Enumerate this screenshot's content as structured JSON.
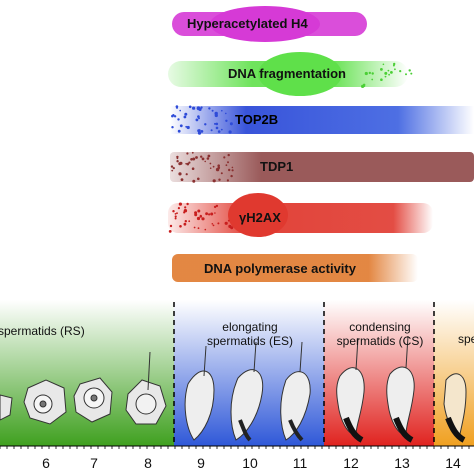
{
  "markers": [
    {
      "label": "Hyperacetylated H4",
      "color": "#d63ad6"
    },
    {
      "label": "DNA fragmentation",
      "color": "#5fe04a"
    },
    {
      "label": "TOP2B",
      "color": "#2e4bd8"
    },
    {
      "label": "TDP1",
      "color": "#9a5a5a"
    },
    {
      "label": "γH2AX",
      "color": "#e0392f"
    },
    {
      "label": "DNA polymerase activity",
      "color": "#e07a2e"
    }
  ],
  "phases": [
    {
      "label": "spermatids (RS)",
      "color": "#4aa02a"
    },
    {
      "label": "elongating\nspermatids (ES)",
      "color": "#3a5fd8"
    },
    {
      "label": "condensing\nspermatids (CS)",
      "color": "#e0302a"
    },
    {
      "label": "spe",
      "color": "#f0a020"
    }
  ],
  "steps": [
    "6",
    "7",
    "8",
    "9",
    "10",
    "11",
    "12",
    "13",
    "14"
  ]
}
